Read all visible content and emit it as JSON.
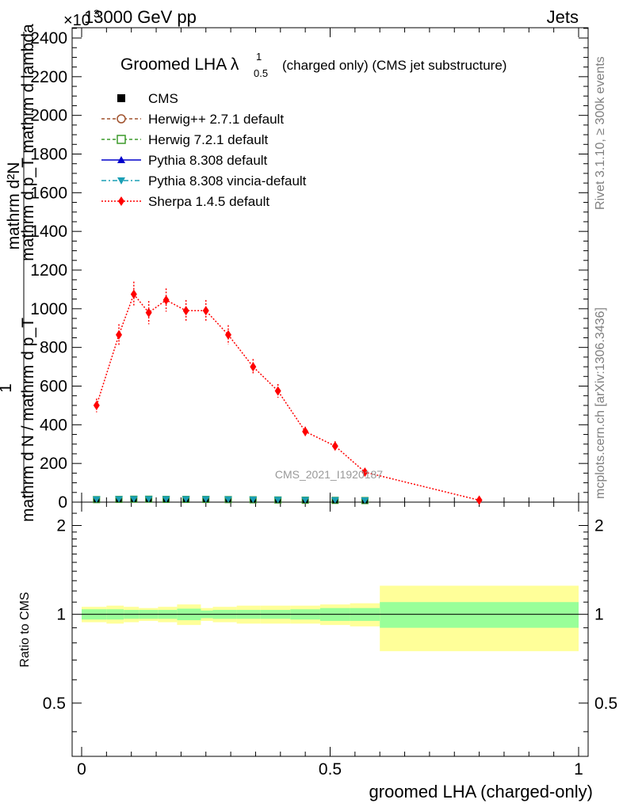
{
  "header": {
    "energy": "13000 GeV pp",
    "process": "Jets",
    "exponent": "×10",
    "exponent_power": "3"
  },
  "side_labels": {
    "rivet": "Rivet 3.1.10, ≥ 300k events",
    "mcplots": "mcplots.cern.ch [arXiv:1306.3436]"
  },
  "watermark": "CMS_2021_I1920187",
  "colors": {
    "cms": "#000000",
    "herwigpp": "#a0522d",
    "herwig7": "#3c9a2a",
    "pythia": "#0000cc",
    "vincia": "#1a9fb5",
    "sherpa": "#ff0000",
    "band_stat": "#99ff99",
    "band_total": "#ffff99"
  },
  "chart_data": {
    "type": "line",
    "title": "Groomed LHA λ",
    "title_sup": "1",
    "title_sub": "0.5",
    "title_suffix": "(charged only) (CMS jet substructure)",
    "ylabel": "1 / mathrm d N / mathrm d p_T mathrm d p_T mathrm d lambda",
    "ylabel_line1": "mathrm d²N",
    "ylabel_line2": "mathrm d p_T mathrm d lambda",
    "ylabel_frac": "1",
    "ylabel_bottom": "mathrm d N / mathrm d p_T",
    "xlabel": "groomed LHA (charged-only)",
    "ratio_ylabel": "Ratio to CMS",
    "xlim": [
      0,
      1
    ],
    "ylim": [
      0,
      2450
    ],
    "ratio_ylim": [
      0.33,
      2.4
    ],
    "x_ticks": [
      "0",
      "0.5",
      "1"
    ],
    "y_ticks": [
      "0",
      "200",
      "400",
      "600",
      "800",
      "1000",
      "1200",
      "1400",
      "1600",
      "1800",
      "2000",
      "2200",
      "2400"
    ],
    "ratio_ticks": [
      "0.5",
      "1",
      "2"
    ],
    "bin_edges": [
      0.0,
      0.05,
      0.0848,
      0.1152,
      0.1536,
      0.192,
      0.24,
      0.264,
      0.312,
      0.36,
      0.42,
      0.48,
      0.54,
      0.6,
      1.0
    ],
    "x_centers": [
      0.03,
      0.075,
      0.105,
      0.135,
      0.17,
      0.21,
      0.25,
      0.295,
      0.345,
      0.395,
      0.45,
      0.51,
      0.57,
      0.8
    ],
    "legend": [
      {
        "label": "CMS",
        "marker": "square",
        "line": "none",
        "color": "#000000"
      },
      {
        "label": "Herwig++ 2.7.1 default",
        "marker": "circle-open",
        "line": "dashed",
        "color": "#a0522d"
      },
      {
        "label": "Herwig 7.2.1 default",
        "marker": "square-open",
        "line": "dashed",
        "color": "#3c9a2a"
      },
      {
        "label": "Pythia 8.308 default",
        "marker": "triangle-up",
        "line": "solid",
        "color": "#0000cc"
      },
      {
        "label": "Pythia 8.308 vincia-default",
        "marker": "triangle-down",
        "line": "dashdot",
        "color": "#1a9fb5"
      },
      {
        "label": "Sherpa 1.4.5 default",
        "marker": "diamond",
        "line": "dotted",
        "color": "#ff0000"
      }
    ],
    "series": [
      {
        "name": "CMS",
        "values": [
          9,
          10,
          11,
          11,
          10,
          10,
          10,
          9,
          8,
          7,
          6,
          5,
          4,
          1
        ]
      },
      {
        "name": "Sherpa 1.4.5 default",
        "values": [
          500,
          865,
          1075,
          980,
          1045,
          990,
          990,
          865,
          700,
          575,
          365,
          290,
          155,
          10
        ],
        "errors": [
          35,
          55,
          65,
          60,
          60,
          55,
          55,
          50,
          40,
          35,
          25,
          25,
          20,
          5
        ]
      }
    ],
    "ratio_band_stat": [
      0.04,
      0.04,
      0.035,
      0.035,
      0.035,
      0.045,
      0.03,
      0.035,
      0.035,
      0.035,
      0.04,
      0.05,
      0.05,
      0.1
    ],
    "ratio_band_total": [
      0.06,
      0.07,
      0.06,
      0.05,
      0.06,
      0.08,
      0.05,
      0.06,
      0.07,
      0.07,
      0.07,
      0.08,
      0.09,
      0.25
    ]
  }
}
